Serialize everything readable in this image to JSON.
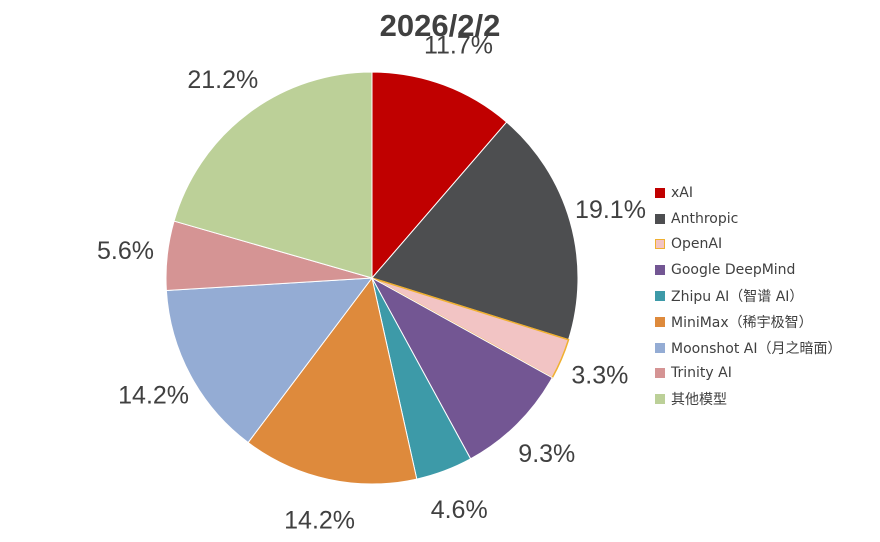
{
  "chart_data": {
    "type": "pie",
    "title": "2026/2/2",
    "legend_position": "right",
    "slices": [
      {
        "name": "xAI",
        "value": 11.7,
        "label": "11.7%",
        "color": "#c00000"
      },
      {
        "name": "Anthropic",
        "value": 19.1,
        "label": "19.1%",
        "color": "#4d4e50"
      },
      {
        "name": "OpenAI",
        "value": 3.3,
        "label": "3.3%",
        "color": "#f2c4c4",
        "border": "#f0b030"
      },
      {
        "name": "Google DeepMind",
        "value": 9.3,
        "label": "9.3%",
        "color": "#735693"
      },
      {
        "name": "Zhipu AI（智谱 AI）",
        "value": 4.6,
        "label": "4.6%",
        "color": "#3d9aa8"
      },
      {
        "name": "MiniMax（稀宇极智）",
        "value": 14.2,
        "label": "14.2%",
        "color": "#de8a3c"
      },
      {
        "name": "Moonshot AI（月之暗面）",
        "value": 14.2,
        "label": "14.2%",
        "color": "#94acd4"
      },
      {
        "name": "Trinity AI",
        "value": 5.6,
        "label": "5.6%",
        "color": "#d59494"
      },
      {
        "name": "其他模型",
        "value": 21.2,
        "label": "21.2%",
        "color": "#bcd098"
      }
    ]
  }
}
